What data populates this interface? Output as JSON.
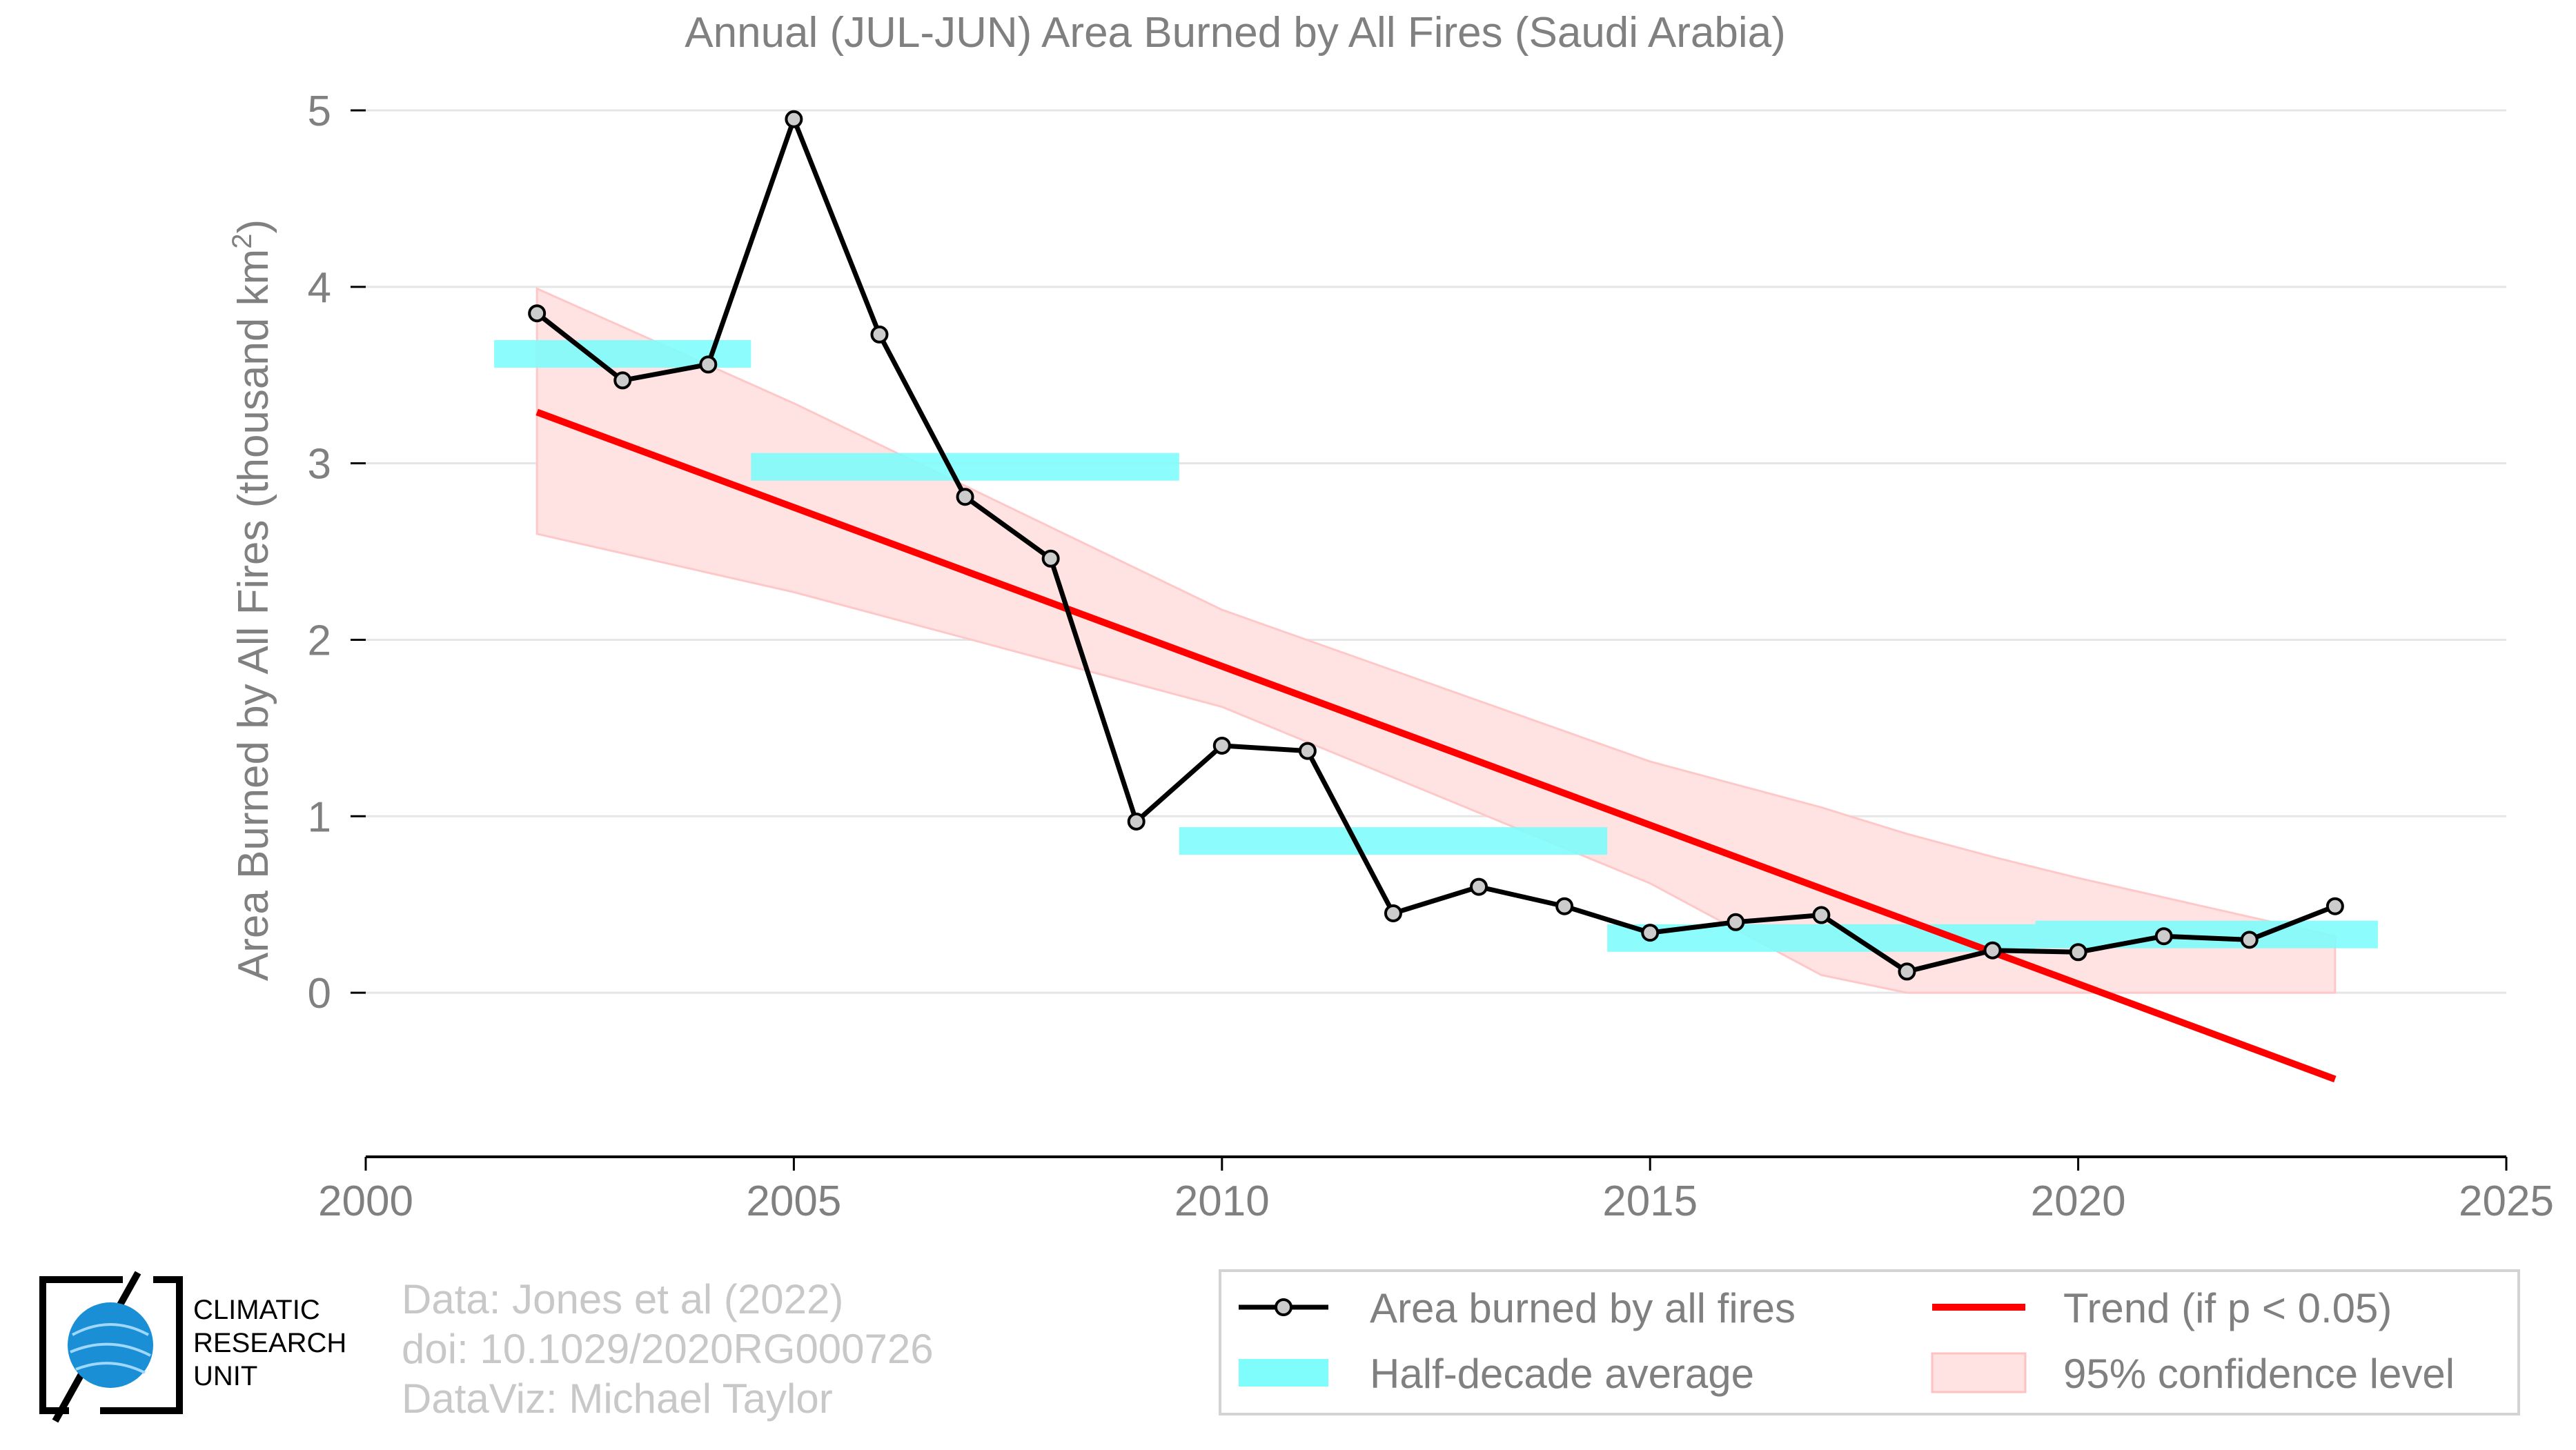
{
  "chart_data": {
    "type": "line",
    "title": "Annual (JUL-JUN) Area Burned by All Fires (Saudi Arabia)",
    "xlabel": "",
    "ylabel_main": "Area Burned by All Fires (thousand km",
    "ylabel_sup": "2",
    "ylabel_close": ")",
    "xlim": [
      2000,
      2025
    ],
    "ylim": [
      -0.93,
      5.0
    ],
    "xticks": [
      "2000",
      "2005",
      "2010",
      "2015",
      "2020",
      "2025"
    ],
    "yticks": [
      "0",
      "1",
      "2",
      "3",
      "4",
      "5"
    ],
    "grid": true,
    "series": [
      {
        "name": "Area burned by all fires",
        "color": "#000000",
        "x": [
          2002,
          2003,
          2004,
          2005,
          2006,
          2007,
          2008,
          2009,
          2010,
          2011,
          2012,
          2013,
          2014,
          2015,
          2016,
          2017,
          2018,
          2019,
          2020,
          2021,
          2022,
          2023
        ],
        "y": [
          3.85,
          3.47,
          3.56,
          4.95,
          3.73,
          2.81,
          2.46,
          0.97,
          1.4,
          1.37,
          0.45,
          0.6,
          0.49,
          0.34,
          0.4,
          0.44,
          0.12,
          0.24,
          0.23,
          0.32,
          0.3,
          0.49
        ]
      }
    ],
    "half_decade_average": {
      "name": "Half-decade average",
      "color": "#7ffcfc",
      "segments": [
        {
          "x0": 2001.5,
          "x1": 2004.5,
          "y": 3.62
        },
        {
          "x0": 2004.5,
          "x1": 2009.5,
          "y": 2.98
        },
        {
          "x0": 2009.5,
          "x1": 2014.5,
          "y": 0.86
        },
        {
          "x0": 2014.5,
          "x1": 2019.5,
          "y": 0.31
        },
        {
          "x0": 2019.5,
          "x1": 2023.5,
          "y": 0.33
        }
      ]
    },
    "trend": {
      "name": "Trend (if p < 0.05)",
      "color": "#ff0000",
      "x": [
        2002,
        2023
      ],
      "y": [
        3.29,
        -0.49
      ]
    },
    "confidence_band": {
      "name": "95% confidence level",
      "color": "#ffcccc",
      "x": [
        2002,
        2005,
        2010,
        2015,
        2017,
        2018,
        2019,
        2020,
        2023
      ],
      "lower": [
        2.6,
        2.27,
        1.62,
        0.62,
        0.1,
        0.0,
        0.0,
        0.0,
        0.0
      ],
      "upper": [
        3.99,
        3.34,
        2.17,
        1.31,
        1.05,
        0.9,
        0.77,
        0.65,
        0.32
      ]
    },
    "legend": {
      "placement": "bottom-right",
      "items": [
        {
          "label": "Area burned by all fires"
        },
        {
          "label": "Trend (if p < 0.05)"
        },
        {
          "label": "Half-decade average"
        },
        {
          "label": "95% confidence level"
        }
      ]
    }
  },
  "footer": {
    "source_line1": "Data: Jones et al (2022)",
    "source_line2": "doi: 10.1029/2020RG000726",
    "source_line3": "DataViz: Michael Taylor",
    "logo_line1": "CLIMATIC",
    "logo_line2": "RESEARCH",
    "logo_line3": "UNIT"
  },
  "colors": {
    "text_gray": "#808080",
    "grid": "#e5e5e5",
    "axis": "#000000",
    "logo_blue": "#1a8fd6"
  }
}
